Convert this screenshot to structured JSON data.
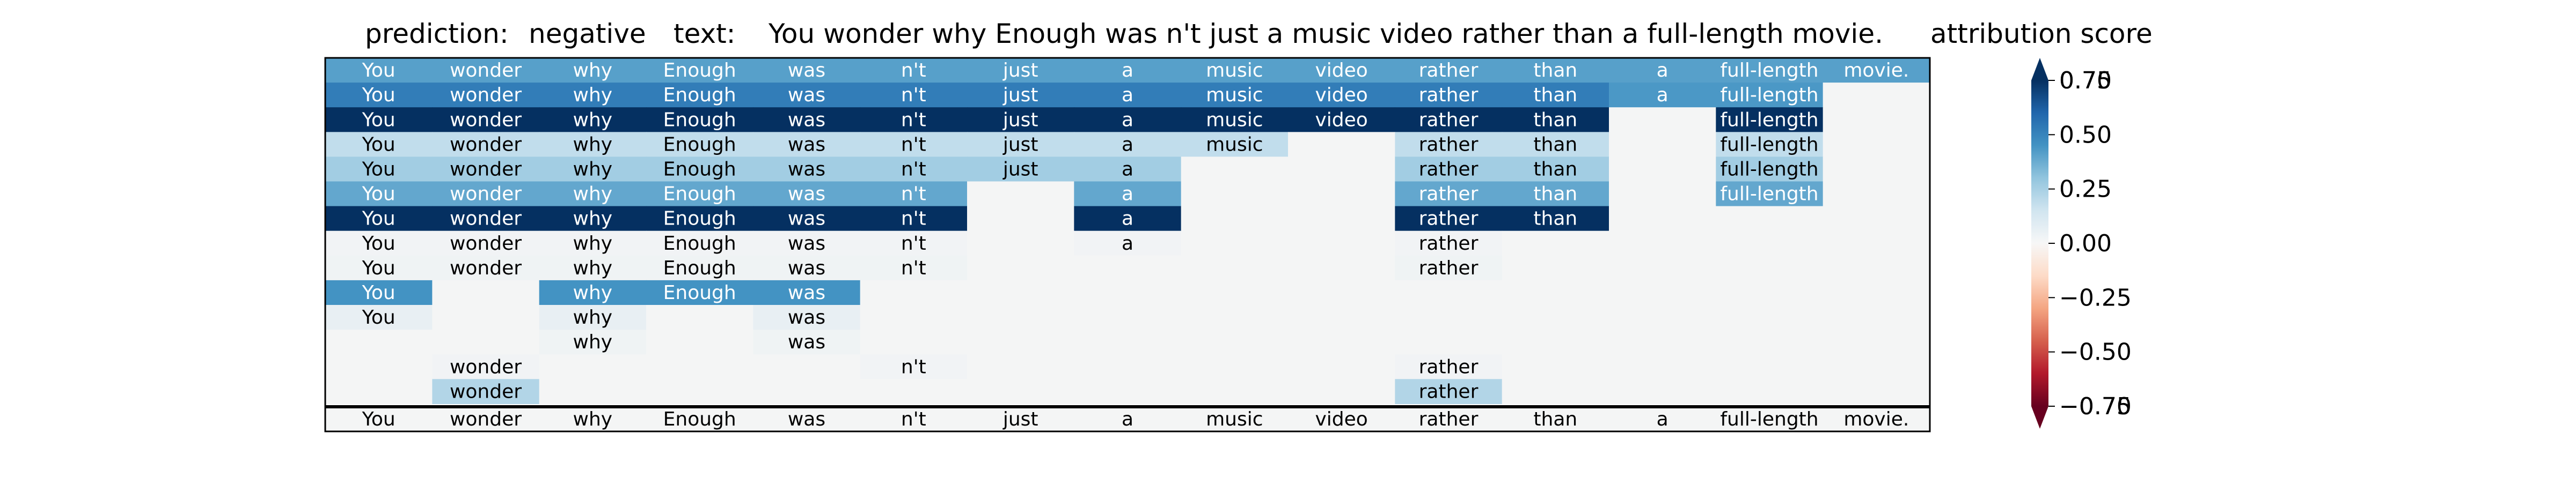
{
  "chart_data": {
    "type": "heatmap",
    "title_parts": [
      {
        "label": "prediction:",
        "value": "negative"
      },
      {
        "label": "text:",
        "value": "You wonder why Enough was n't just a music video rather than a full-length movie."
      },
      {
        "label": "attribution score",
        "value": ""
      }
    ],
    "tokens": [
      "You",
      "wonder",
      "why",
      "Enough",
      "was",
      "n't",
      "just",
      "a",
      "music",
      "video",
      "rather",
      "than",
      "a",
      "full-length",
      "movie."
    ],
    "rows": [
      {
        "tokens": [
          "You",
          "wonder",
          "why",
          "Enough",
          "was",
          "n't",
          "just",
          "a",
          "music",
          "video",
          "rather",
          "than",
          "a",
          "full-length",
          "movie."
        ],
        "scores": [
          0.55,
          0.55,
          0.55,
          0.55,
          0.55,
          0.55,
          0.55,
          0.55,
          0.55,
          0.55,
          0.55,
          0.55,
          0.55,
          0.55,
          0.55
        ]
      },
      {
        "tokens": [
          "You",
          "wonder",
          "why",
          "Enough",
          "was",
          "n't",
          "just",
          "a",
          "music",
          "video",
          "rather",
          "than",
          "a",
          "full-length",
          ""
        ],
        "scores": [
          0.7,
          0.7,
          0.7,
          0.7,
          0.7,
          0.7,
          0.7,
          0.7,
          0.7,
          0.7,
          0.7,
          0.7,
          0.58,
          0.58,
          0.0
        ]
      },
      {
        "tokens": [
          "You",
          "wonder",
          "why",
          "Enough",
          "was",
          "n't",
          "just",
          "a",
          "music",
          "video",
          "rather",
          "than",
          "",
          "full-length",
          ""
        ],
        "scores": [
          1.0,
          1.0,
          1.0,
          1.0,
          1.0,
          1.0,
          1.0,
          1.0,
          1.0,
          1.0,
          1.0,
          1.0,
          0.0,
          1.0,
          0.0
        ]
      },
      {
        "tokens": [
          "You",
          "wonder",
          "why",
          "Enough",
          "was",
          "n't",
          "just",
          "a",
          "music",
          "",
          "rather",
          "than",
          "",
          "full-length",
          ""
        ],
        "scores": [
          0.25,
          0.25,
          0.25,
          0.25,
          0.25,
          0.25,
          0.25,
          0.25,
          0.25,
          0.0,
          0.25,
          0.25,
          0.0,
          0.25,
          0.0
        ]
      },
      {
        "tokens": [
          "You",
          "wonder",
          "why",
          "Enough",
          "was",
          "n't",
          "just",
          "a",
          "",
          "",
          "rather",
          "than",
          "",
          "full-length",
          ""
        ],
        "scores": [
          0.35,
          0.35,
          0.35,
          0.35,
          0.35,
          0.35,
          0.35,
          0.35,
          0.0,
          0.0,
          0.35,
          0.35,
          0.0,
          0.35,
          0.0
        ]
      },
      {
        "tokens": [
          "You",
          "wonder",
          "why",
          "Enough",
          "was",
          "n't",
          "",
          "a",
          "",
          "",
          "rather",
          "than",
          "",
          "full-length",
          ""
        ],
        "scores": [
          0.52,
          0.52,
          0.52,
          0.52,
          0.52,
          0.52,
          0.0,
          0.52,
          0.0,
          0.0,
          0.52,
          0.52,
          0.0,
          0.52,
          0.0
        ]
      },
      {
        "tokens": [
          "You",
          "wonder",
          "why",
          "Enough",
          "was",
          "n't",
          "",
          "a",
          "",
          "",
          "rather",
          "than",
          "",
          "",
          ""
        ],
        "scores": [
          1.0,
          1.0,
          1.0,
          1.0,
          1.0,
          1.0,
          0.0,
          1.0,
          0.0,
          0.0,
          1.0,
          1.0,
          0.0,
          0.0,
          0.0
        ]
      },
      {
        "tokens": [
          "You",
          "wonder",
          "why",
          "Enough",
          "was",
          "n't",
          "",
          "a",
          "",
          "",
          "rather",
          "",
          "",
          "",
          ""
        ],
        "scores": [
          0.02,
          0.02,
          0.02,
          0.02,
          0.02,
          0.02,
          0.0,
          0.02,
          0.0,
          0.0,
          0.02,
          0.0,
          0.0,
          0.0,
          0.0
        ]
      },
      {
        "tokens": [
          "You",
          "wonder",
          "why",
          "Enough",
          "was",
          "n't",
          "",
          "",
          "",
          "",
          "rather",
          "",
          "",
          "",
          ""
        ],
        "scores": [
          0.03,
          0.03,
          0.03,
          0.03,
          0.03,
          0.03,
          0.0,
          0.0,
          0.0,
          0.0,
          0.03,
          0.0,
          0.0,
          0.0,
          0.0
        ]
      },
      {
        "tokens": [
          "You",
          "",
          "why",
          "Enough",
          "was",
          "",
          "",
          "",
          "",
          "",
          "",
          "",
          "",
          "",
          ""
        ],
        "scores": [
          0.6,
          0.0,
          0.6,
          0.6,
          0.6,
          0.0,
          0.0,
          0.0,
          0.0,
          0.0,
          0.0,
          0.0,
          0.0,
          0.0,
          0.0
        ]
      },
      {
        "tokens": [
          "You",
          "",
          "why",
          "",
          "was",
          "",
          "",
          "",
          "",
          "",
          "",
          "",
          "",
          "",
          ""
        ],
        "scores": [
          0.07,
          0.0,
          0.07,
          0.0,
          0.07,
          0.0,
          0.0,
          0.0,
          0.0,
          0.0,
          0.0,
          0.0,
          0.0,
          0.0,
          0.0
        ]
      },
      {
        "tokens": [
          "",
          "",
          "why",
          "",
          "was",
          "",
          "",
          "",
          "",
          "",
          "",
          "",
          "",
          "",
          ""
        ],
        "scores": [
          0.0,
          0.0,
          0.03,
          0.0,
          0.03,
          0.0,
          0.0,
          0.0,
          0.0,
          0.0,
          0.0,
          0.0,
          0.0,
          0.0,
          0.0
        ]
      },
      {
        "tokens": [
          "",
          "wonder",
          "",
          "",
          "",
          "n't",
          "",
          "",
          "",
          "",
          "rather",
          "",
          "",
          "",
          ""
        ],
        "scores": [
          0.0,
          0.02,
          0.0,
          0.0,
          0.0,
          0.02,
          0.0,
          0.0,
          0.0,
          0.0,
          0.02,
          0.0,
          0.0,
          0.0,
          0.0
        ]
      },
      {
        "tokens": [
          "",
          "wonder",
          "",
          "",
          "",
          "",
          "",
          "",
          "",
          "",
          "rather",
          "",
          "",
          "",
          ""
        ],
        "scores": [
          0.0,
          0.3,
          0.0,
          0.0,
          0.0,
          0.0,
          0.0,
          0.0,
          0.0,
          0.0,
          0.3,
          0.0,
          0.0,
          0.0,
          0.0
        ]
      }
    ],
    "reference_row": {
      "tokens": [
        "You",
        "wonder",
        "why",
        "Enough",
        "was",
        "n't",
        "just",
        "a",
        "music",
        "video",
        "rather",
        "than",
        "a",
        "full-length",
        "movie."
      ],
      "scores": [
        0,
        0,
        0,
        0,
        0,
        0,
        0,
        0,
        0,
        0,
        0,
        0,
        0,
        0,
        0
      ]
    },
    "colorbar": {
      "label": "attribution score",
      "colormap": "RdBu",
      "vmin": -0.75,
      "vmax": 0.75,
      "ticks": [
        0.75,
        0.5,
        0.25,
        0.0,
        -0.25,
        -0.5,
        -0.75
      ],
      "tick_labels": [
        "0.75",
        "0.50",
        "0.25",
        "0.00",
        "−0.25",
        "−0.50",
        "−0.75"
      ],
      "overlapping_end_labels": [
        "0.70",
        "−0.70"
      ],
      "extend": "both"
    },
    "colors": {
      "background": "#ffffff",
      "neutral_cell": "#f4f5f5",
      "border": "#000000",
      "text_dark": "#000000",
      "text_light": "#ffffff"
    }
  }
}
